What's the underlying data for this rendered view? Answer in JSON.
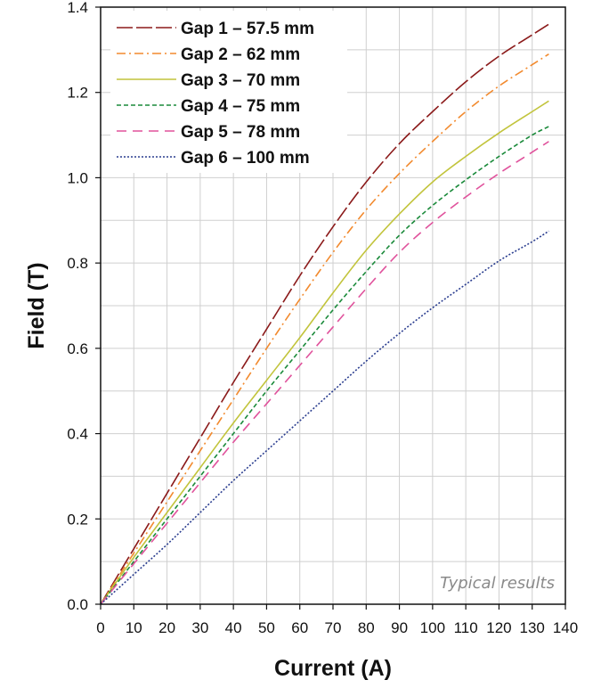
{
  "chart_data": {
    "type": "line",
    "xlabel": "Current (A)",
    "ylabel": "Field (T)",
    "xlim": [
      0,
      140
    ],
    "ylim": [
      0,
      1.4
    ],
    "xticks": [
      0,
      10,
      20,
      30,
      40,
      50,
      60,
      70,
      80,
      90,
      100,
      110,
      120,
      130,
      140
    ],
    "yticks": [
      "0.0",
      "0.2",
      "0.4",
      "0.6",
      "0.8",
      "1.0",
      "1.2",
      "1.4"
    ],
    "grid": true,
    "legend_position": "top-left",
    "annotation": "Typical results",
    "x": [
      0,
      10,
      20,
      30,
      40,
      50,
      60,
      70,
      80,
      90,
      100,
      110,
      120,
      130,
      135
    ],
    "series": [
      {
        "name": "Gap 1 – 57.5 mm",
        "color": "#8b1a1a",
        "dash": "long-dash",
        "values": [
          0,
          0.13,
          0.26,
          0.39,
          0.52,
          0.645,
          0.77,
          0.885,
          0.99,
          1.08,
          1.155,
          1.225,
          1.285,
          1.335,
          1.36
        ]
      },
      {
        "name": "Gap 2 – 62 mm",
        "color": "#f28a2e",
        "dash": "dash-dot",
        "values": [
          0,
          0.12,
          0.24,
          0.36,
          0.48,
          0.6,
          0.715,
          0.825,
          0.925,
          1.01,
          1.085,
          1.155,
          1.215,
          1.265,
          1.29
        ]
      },
      {
        "name": "Gap 3 – 70 mm",
        "color": "#c2c43c",
        "dash": "solid",
        "values": [
          0,
          0.11,
          0.215,
          0.32,
          0.425,
          0.525,
          0.625,
          0.73,
          0.83,
          0.915,
          0.99,
          1.05,
          1.105,
          1.155,
          1.18
        ]
      },
      {
        "name": "Gap 4 – 75 mm",
        "color": "#1a8a3a",
        "dash": "short-dash",
        "values": [
          0,
          0.1,
          0.2,
          0.3,
          0.4,
          0.5,
          0.595,
          0.69,
          0.78,
          0.865,
          0.935,
          0.995,
          1.05,
          1.1,
          1.12
        ]
      },
      {
        "name": "Gap 5 – 78 mm",
        "color": "#e0529c",
        "dash": "medium-dash",
        "values": [
          0,
          0.095,
          0.19,
          0.285,
          0.38,
          0.47,
          0.56,
          0.65,
          0.74,
          0.825,
          0.895,
          0.955,
          1.01,
          1.06,
          1.085
        ]
      },
      {
        "name": "Gap 6 – 100 mm",
        "color": "#2a3d8f",
        "dash": "dotted",
        "values": [
          0,
          0.07,
          0.14,
          0.215,
          0.29,
          0.36,
          0.43,
          0.5,
          0.57,
          0.635,
          0.695,
          0.75,
          0.805,
          0.85,
          0.875
        ]
      }
    ]
  }
}
